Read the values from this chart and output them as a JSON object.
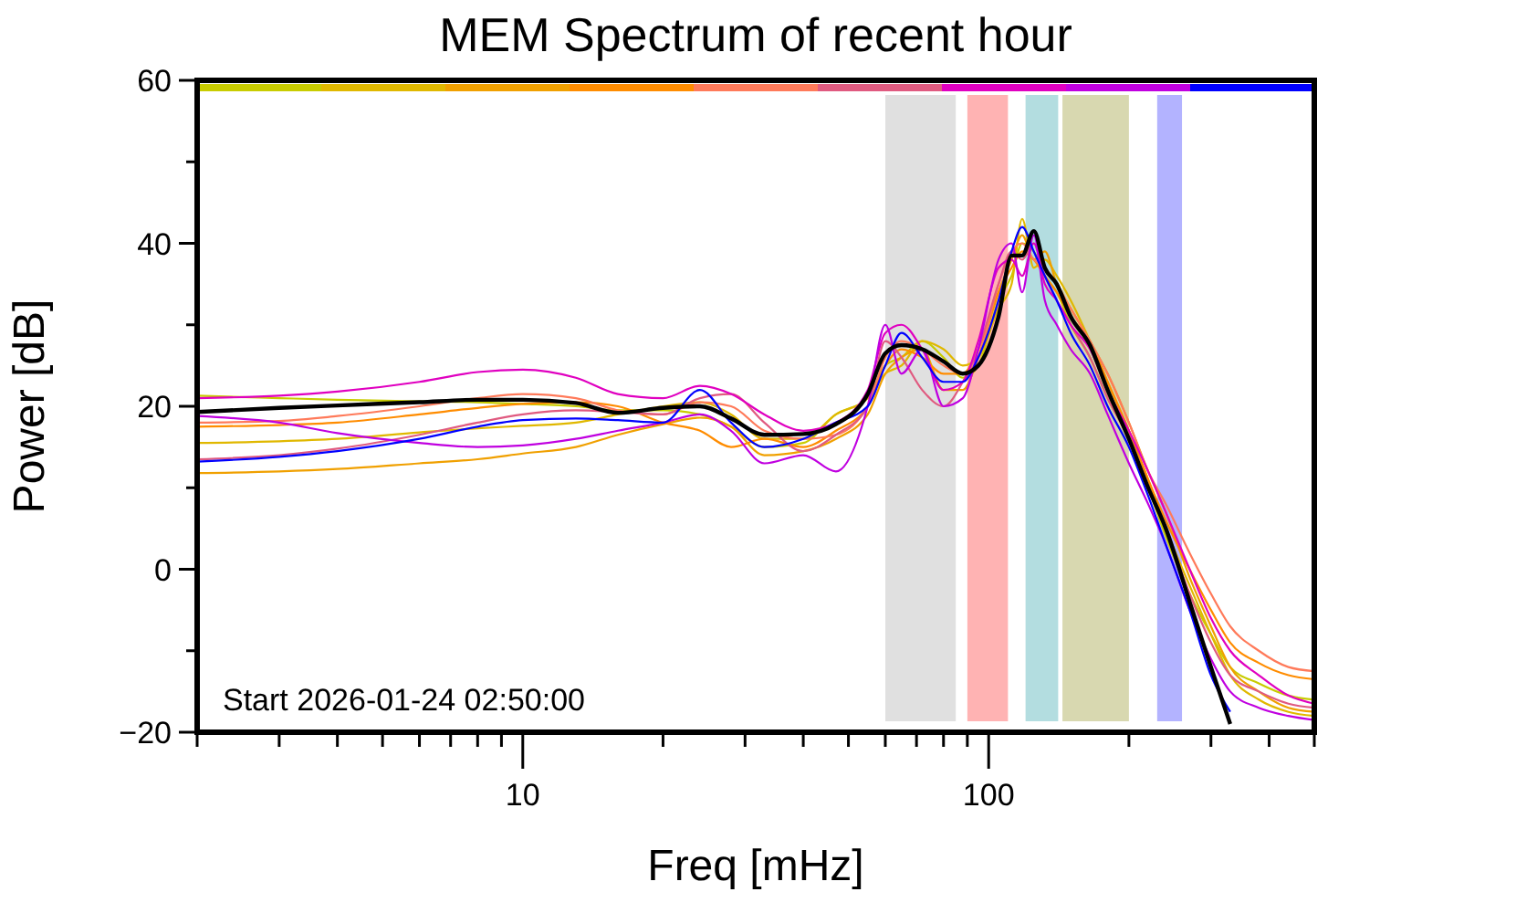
{
  "chart_data": {
    "type": "line",
    "title": "MEM Spectrum of recent hour",
    "xlabel": "Freq [mHz]",
    "ylabel": "Power [dB]",
    "log": "x",
    "x": [
      2,
      3,
      4,
      6,
      8,
      10,
      13,
      16,
      20,
      24,
      28,
      33,
      40,
      47,
      55,
      60,
      65,
      72,
      80,
      88,
      95,
      105,
      112,
      118,
      125,
      132,
      140,
      150,
      165,
      180,
      200,
      220,
      240,
      270,
      300,
      330,
      380,
      440,
      500
    ],
    "xlim": [
      2,
      500
    ],
    "xticks": [
      {
        "value": 2,
        "label": null
      },
      {
        "value": 3,
        "label": null
      },
      {
        "value": 4,
        "label": null
      },
      {
        "value": 5,
        "label": null
      },
      {
        "value": 6,
        "label": null
      },
      {
        "value": 7,
        "label": null
      },
      {
        "value": 8,
        "label": null
      },
      {
        "value": 9,
        "label": null
      },
      10,
      {
        "value": 20,
        "label": null
      },
      {
        "value": 30,
        "label": null
      },
      {
        "value": 40,
        "label": null
      },
      {
        "value": 50,
        "label": null
      },
      {
        "value": 60,
        "label": null
      },
      {
        "value": 70,
        "label": null
      },
      {
        "value": 80,
        "label": null
      },
      {
        "value": 90,
        "label": null
      },
      100,
      {
        "value": 200,
        "label": null
      },
      {
        "value": 300,
        "label": null
      },
      {
        "value": 400,
        "label": null
      },
      {
        "value": 500,
        "label": null
      }
    ],
    "ylim": [
      -20,
      60
    ],
    "yticks": [
      -20,
      {
        "value": -10,
        "label": null
      },
      0,
      {
        "value": 10,
        "label": null
      },
      20,
      {
        "value": 30,
        "label": null
      },
      40,
      {
        "value": 50,
        "label": null
      },
      60
    ],
    "marker": "none",
    "line_style": "solid",
    "annotations": [
      "Start 2026-01-24 02:50:00"
    ],
    "bands": [
      {
        "axis": "x",
        "from": 60,
        "to": 85,
        "color": "#e0e0e0"
      },
      {
        "axis": "x",
        "from": 90,
        "to": 110,
        "color": "#ffb3b3"
      },
      {
        "axis": "x",
        "from": 120,
        "to": 141,
        "color": "#b3dde0"
      },
      {
        "axis": "x",
        "from": 144,
        "to": 200,
        "color": "#d8d8b0"
      },
      {
        "axis": "x",
        "from": 230,
        "to": 260,
        "color": "#b3b3ff"
      }
    ],
    "series": [
      {
        "color": "#c8cc00",
        "values": [
          21.3,
          21,
          20.8,
          20.6,
          20.5,
          20.3,
          20,
          19.5,
          19.5,
          19,
          17.5,
          15,
          15.5,
          19,
          21,
          25,
          26,
          28,
          26,
          23.5,
          25,
          33,
          36,
          40,
          39,
          36,
          34,
          30,
          26,
          21,
          16,
          10,
          4,
          -3,
          -8,
          -12,
          -14,
          -15.5,
          -16
        ]
      },
      {
        "color": "#e0b800",
        "values": [
          15.5,
          15.7,
          16,
          16.8,
          17.3,
          17.6,
          18,
          19,
          20,
          20.5,
          19,
          16,
          16,
          19,
          21,
          24,
          25,
          28,
          27,
          25,
          26,
          32,
          35,
          43,
          37,
          38,
          36,
          33,
          28,
          23,
          17,
          11,
          5,
          -2,
          -8,
          -13,
          -16,
          -17.5,
          -18
        ]
      },
      {
        "color": "#f0a000",
        "values": [
          11.8,
          12,
          12.3,
          13,
          13.5,
          14.2,
          15,
          16.5,
          17.8,
          18.6,
          17.5,
          14,
          14.5,
          16,
          19,
          24,
          26,
          27,
          22,
          22,
          26,
          34,
          38,
          41,
          38,
          39,
          35,
          32,
          28,
          24,
          18,
          12,
          7,
          -1,
          -7,
          -12,
          -15,
          -17,
          -17.5
        ]
      },
      {
        "color": "#ff8c00",
        "values": [
          17.5,
          17.7,
          18,
          19,
          19.8,
          20.3,
          20.5,
          20,
          18,
          17,
          15,
          16,
          15,
          17,
          20,
          25,
          27,
          26,
          24,
          24,
          27,
          34,
          37,
          39,
          38,
          36,
          34,
          31,
          28,
          23,
          17,
          11,
          6,
          0,
          -5,
          -9,
          -11.5,
          -13,
          -13.5
        ]
      },
      {
        "color": "#ff7a5a",
        "values": [
          18,
          18.2,
          18.8,
          20,
          21,
          21.5,
          21,
          19.5,
          19,
          20.5,
          20,
          17,
          16,
          16.5,
          20,
          26,
          28,
          27,
          25,
          24,
          26,
          35,
          39,
          40,
          38,
          37,
          35,
          32,
          28,
          24,
          18,
          12,
          8,
          2,
          -3,
          -7,
          -10,
          -12,
          -12.5
        ]
      },
      {
        "color": "#e05a80",
        "values": [
          13.5,
          14,
          14.8,
          16.5,
          18,
          19,
          19.5,
          19.3,
          19,
          21,
          21.5,
          18,
          14.5,
          16.5,
          20,
          28,
          26,
          22,
          20,
          23,
          27,
          35,
          39,
          38,
          40,
          36,
          33,
          30,
          26,
          21,
          16,
          10,
          5,
          -3,
          -9,
          -13,
          -15,
          -16.5,
          -17
        ]
      },
      {
        "color": "#e000c0",
        "values": [
          21,
          21.3,
          21.8,
          23,
          24.2,
          24.5,
          23.5,
          21.5,
          21,
          22.5,
          21.5,
          19,
          17,
          18,
          22,
          29,
          30,
          27,
          22,
          23,
          28,
          37,
          38,
          36,
          40,
          35,
          33,
          30,
          27,
          22,
          17,
          12,
          7,
          0,
          -6,
          -10,
          -13,
          -15.5,
          -16.5
        ]
      },
      {
        "color": "#c000e0",
        "values": [
          18.8,
          18,
          16.7,
          15.5,
          15,
          15.2,
          16,
          17,
          18,
          19,
          17,
          13,
          14,
          12,
          20,
          30,
          24,
          27,
          20,
          21,
          27,
          38,
          40,
          34,
          41,
          33,
          30,
          27,
          24,
          19,
          13,
          8,
          3,
          -5,
          -11,
          -15,
          -17,
          -18,
          -18.5
        ]
      },
      {
        "color": "#0000ff",
        "values": [
          13.2,
          13.8,
          14.5,
          16,
          17.5,
          18.3,
          18.5,
          18.3,
          18,
          22,
          18,
          15,
          16,
          18,
          20,
          25,
          29,
          26,
          23,
          23,
          26,
          33,
          39,
          42,
          39,
          36,
          33,
          29,
          25,
          20,
          15,
          9,
          3,
          -5,
          -13,
          -17.5,
          null,
          null,
          null
        ]
      },
      {
        "color": "#000000",
        "values": [
          19.3,
          19.8,
          20.1,
          20.5,
          20.8,
          20.8,
          20.4,
          19.2,
          19.8,
          20,
          18.5,
          16.5,
          16.6,
          17.8,
          21.5,
          26.5,
          27.5,
          27,
          25.5,
          24,
          25,
          31,
          38.5,
          38.5,
          41.5,
          37,
          35,
          31,
          27.5,
          22,
          16,
          10,
          5,
          -4,
          -12,
          -19,
          null,
          null,
          null
        ]
      }
    ]
  }
}
